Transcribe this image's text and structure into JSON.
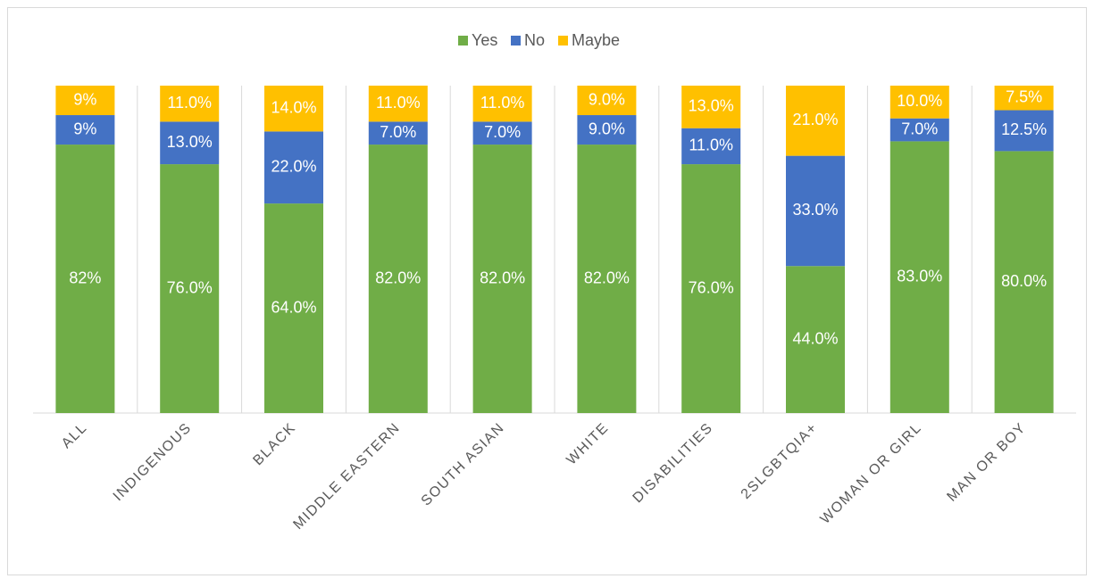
{
  "chart_data": {
    "type": "bar",
    "stacking": "percent",
    "categories": [
      "ALL",
      "INDIGENOUS",
      "BLACK",
      "MIDDLE EASTERN",
      "SOUTH ASIAN",
      "WHITE",
      "DISABILITIES",
      "2SLGBTQIA+",
      "WOMAN OR GIRL",
      "MAN OR BOY"
    ],
    "series": [
      {
        "name": "Yes",
        "color": "#70ad47",
        "values": [
          82,
          76,
          64,
          82,
          82,
          82,
          76,
          44,
          83,
          80
        ],
        "value_labels": [
          "82%",
          "76.0%",
          "64.0%",
          "82.0%",
          "82.0%",
          "82.0%",
          "76.0%",
          "44.0%",
          "83.0%",
          "80.0%"
        ]
      },
      {
        "name": "No",
        "color": "#4472c4",
        "values": [
          9,
          13,
          22,
          7,
          7,
          9,
          11,
          33,
          7,
          12.5
        ],
        "value_labels": [
          "9%",
          "13.0%",
          "22.0%",
          "7.0%",
          "7.0%",
          "9.0%",
          "11.0%",
          "33.0%",
          "7.0%",
          "12.5%"
        ]
      },
      {
        "name": "Maybe",
        "color": "#ffc000",
        "values": [
          9,
          11,
          14,
          11,
          11,
          9,
          13,
          21,
          10,
          7.5
        ],
        "value_labels": [
          "9%",
          "11.0%",
          "14.0%",
          "11.0%",
          "11.0%",
          "9.0%",
          "13.0%",
          "21.0%",
          "10.0%",
          "7.5%"
        ]
      }
    ],
    "legend": "top",
    "grid": true
  }
}
